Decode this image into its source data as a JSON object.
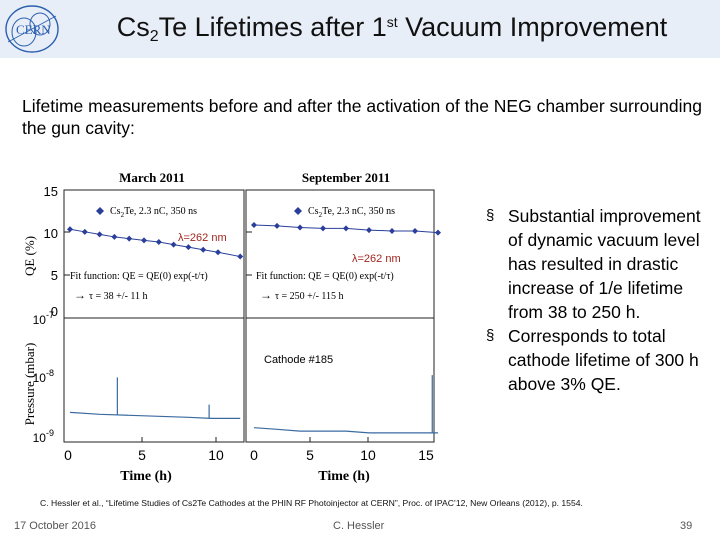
{
  "header": {
    "logo_text": "CERN",
    "title_main": "Cs",
    "title_sub": "2",
    "title_mid": "Te Lifetimes after 1",
    "title_sup": "st",
    "title_end": " Vacuum Improvement"
  },
  "intro": "Lifetime measurements before and after the activation of the NEG chamber surrounding the gun cavity:",
  "figure": {
    "panel_titles": [
      "March 2011",
      "September 2011"
    ],
    "legend_label_a": "Cs",
    "legend_label_sub": "2",
    "legend_label_b": "Te, 2.3 nC, 350 ns",
    "lambda_label": "λ=262 nm",
    "fit_function": "Fit function: QE = QE(0) exp(-t/τ)",
    "tau_left": "τ = 38 +/- 11 h",
    "tau_right": "τ = 250 +/- 115 h",
    "cathode_label": "Cathode #185",
    "y_label_qe": "QE (%)",
    "y_label_pressure": "Pressure (mbar)",
    "x_label": "Time (h)",
    "qe_ticks": [
      "15",
      "10",
      "5",
      "0"
    ],
    "pressure_ticks": [
      {
        "base": "10",
        "exp": "-7"
      },
      {
        "base": "10",
        "exp": "-8"
      },
      {
        "base": "10",
        "exp": "-9"
      }
    ],
    "x_ticks_left": [
      "0",
      "5",
      "10"
    ],
    "x_ticks_right": [
      "0",
      "5",
      "10",
      "15"
    ]
  },
  "chart_data": {
    "type": "scatter",
    "title": "Cs2Te Lifetimes after 1st Vacuum Improvement",
    "xlabel": "Time (h)",
    "panels": [
      {
        "name": "March 2011 QE",
        "ylabel": "QE (%)",
        "xlim": [
          0,
          11.5
        ],
        "ylim": [
          0,
          15
        ],
        "series": [
          {
            "name": "Cs2Te, 2.3 nC, 350 ns",
            "x": [
              0,
              1,
              2,
              3,
              4,
              5,
              6,
              7,
              8,
              9,
              10,
              11.5
            ],
            "y": [
              10.4,
              10.1,
              9.8,
              9.5,
              9.3,
              9.1,
              8.9,
              8.6,
              8.3,
              8.0,
              7.7,
              7.2
            ]
          }
        ],
        "fit_tau_h": 38
      },
      {
        "name": "September 2011 QE",
        "ylabel": "QE (%)",
        "xlim": [
          0,
          16
        ],
        "ylim": [
          0,
          15
        ],
        "series": [
          {
            "name": "Cs2Te, 2.3 nC, 350 ns",
            "x": [
              0,
              2,
              4,
              6,
              8,
              10,
              12,
              14,
              16
            ],
            "y": [
              10.9,
              10.8,
              10.6,
              10.5,
              10.5,
              10.3,
              10.2,
              10.2,
              10.0
            ]
          }
        ],
        "fit_tau_h": 250
      },
      {
        "name": "March 2011 Pressure",
        "ylabel": "Pressure (mbar)",
        "yscale": "log",
        "ylim": [
          1e-09,
          1e-07
        ],
        "series": [
          {
            "name": "pressure",
            "x": [
              0,
              2,
              4,
              6,
              8,
              9.5,
              11.5
            ],
            "y": [
              3e-09,
              2.8e-09,
              2.7e-09,
              2.6e-09,
              2.5e-09,
              2.4e-09,
              2.4e-09
            ]
          }
        ]
      },
      {
        "name": "September 2011 Pressure",
        "ylabel": "Pressure (mbar)",
        "yscale": "log",
        "ylim": [
          1e-09,
          1e-07
        ],
        "series": [
          {
            "name": "pressure",
            "x": [
              0,
              2,
              4,
              6,
              8,
              10,
              12,
              14,
              16
            ],
            "y": [
              1.7e-09,
              1.6e-09,
              1.5e-09,
              1.5e-09,
              1.5e-09,
              1.4e-09,
              1.4e-09,
              1.4e-09,
              1.4e-09
            ]
          }
        ]
      }
    ]
  },
  "bullets": [
    "Substantial improvement of dynamic vacuum level has resulted in drastic increase of 1/e lifetime from 38 to 250 h.",
    "Corresponds to total cathode lifetime of 300 h above 3% QE."
  ],
  "bullet_mark": "§",
  "citation": "C. Hessler et al., “Lifetime Studies of Cs2Te Cathodes at the PHIN RF Photoinjector at CERN”, Proc. of IPAC’12, New Orleans (2012), p. 1554.",
  "footer": {
    "date": "17 October 2016",
    "author": "C. Hessler",
    "page": "39"
  },
  "colors": {
    "header_bg": "#e8eef7",
    "qe_series": "#2a3f9a",
    "pressure_series": "#3a6aa0",
    "lambda_text": "#a0251e"
  }
}
